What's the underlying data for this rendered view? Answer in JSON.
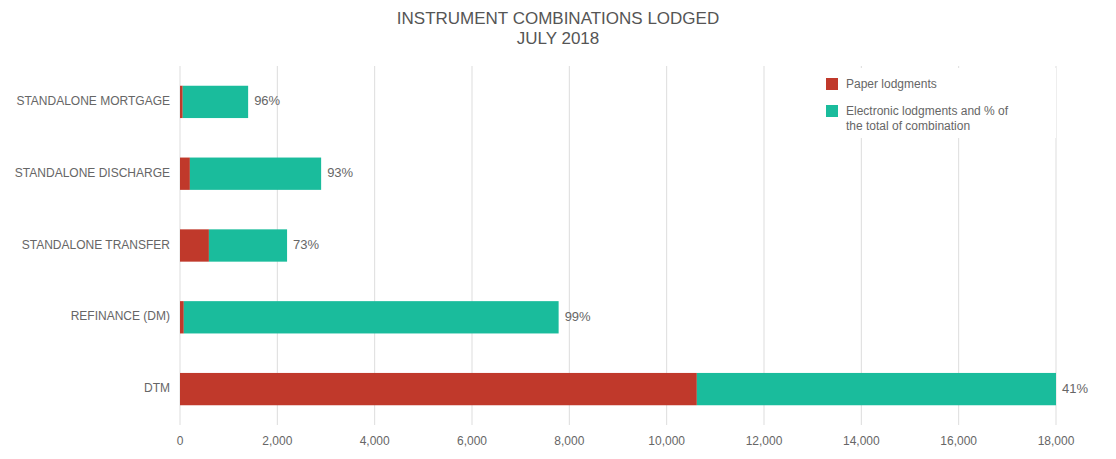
{
  "chart_data": {
    "type": "bar",
    "orientation": "horizontal",
    "stacked": true,
    "title": "INSTRUMENT COMBINATIONS LODGED\nJULY 2018",
    "categories": [
      "DTM",
      "REFINANCE (DM)",
      "STANDALONE TRANSFER",
      "STANDALONE DISCHARGE",
      "STANDALONE MORTGAGE"
    ],
    "series": [
      {
        "name": "Paper lodgments",
        "color": "#c0392b",
        "values": [
          10620,
          78,
          594,
          203,
          56
        ]
      },
      {
        "name": "Electronic lodgments and % of\nthe total of combination",
        "color": "#1abc9c",
        "values": [
          7380,
          7702,
          1606,
          2697,
          1344
        ]
      }
    ],
    "annotations": [
      "41%",
      "99%",
      "73%",
      "93%",
      "96%"
    ],
    "xlim": [
      0,
      18000
    ],
    "xticks": [
      0,
      {
        "value": 2000,
        "label": "2,000"
      },
      {
        "value": 4000,
        "label": "4,000"
      },
      {
        "value": 6000,
        "label": "6,000"
      },
      {
        "value": 8000,
        "label": "8,000"
      },
      {
        "value": 10000,
        "label": "10,000"
      },
      {
        "value": 12000,
        "label": "12,000"
      },
      {
        "value": 14000,
        "label": "14,000"
      },
      {
        "value": 16000,
        "label": "16,000"
      },
      {
        "value": 18000,
        "label": "18,000"
      }
    ],
    "grid": true,
    "legend": "upper right"
  }
}
